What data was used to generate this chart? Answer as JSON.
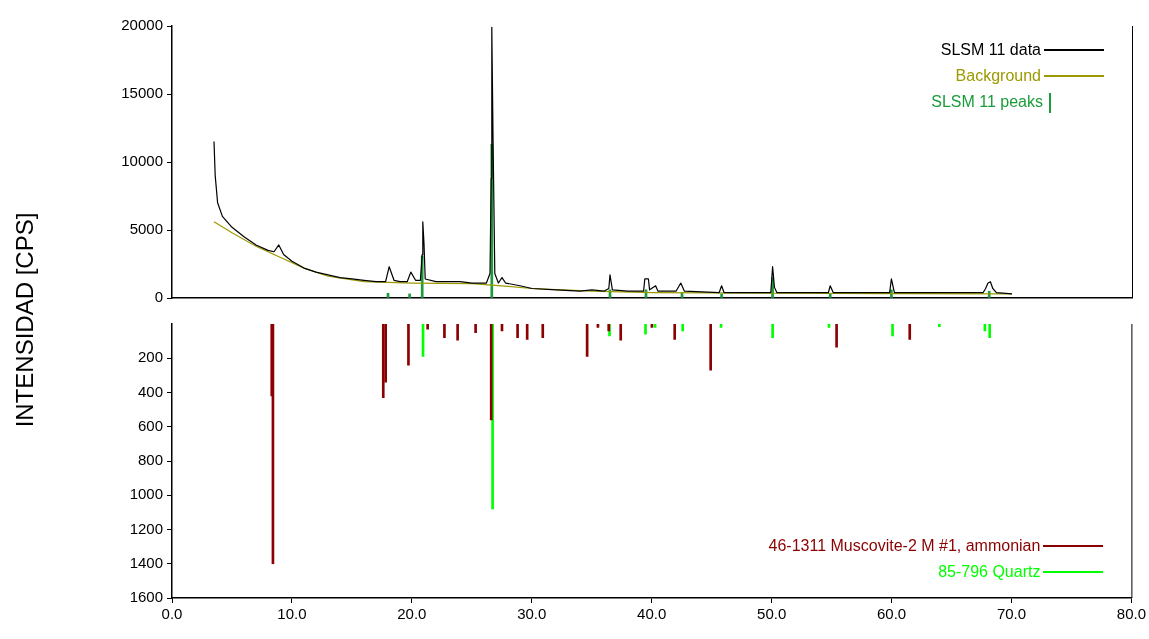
{
  "chart_data": [
    {
      "type": "line",
      "ylabel": "INTENSIDAD [CPS]",
      "xlim": [
        0,
        80
      ],
      "ylim": [
        0,
        20000
      ],
      "yticks": [
        0,
        5000,
        10000,
        15000,
        20000
      ],
      "tick_labels": "y",
      "grid": false,
      "legend": "top right",
      "marker": "none",
      "series": [
        {
          "name": "SLSM 11 data",
          "color": "#000000",
          "x": [
            3.5,
            3.6,
            3.8,
            4.2,
            5,
            6,
            7,
            8,
            8.5,
            8.9,
            9.3,
            10,
            11,
            12,
            13,
            14,
            15,
            16,
            17,
            17.8,
            18.1,
            18.5,
            19,
            19.6,
            19.9,
            20.3,
            20.7,
            20.85,
            20.9,
            21.0,
            21.1,
            22,
            24,
            25,
            26.2,
            26.5,
            26.6,
            26.65,
            26.75,
            26.9,
            27.2,
            27.5,
            27.8,
            29,
            30,
            32,
            34,
            35,
            36,
            36.4,
            36.5,
            36.7,
            38,
            39.3,
            39.4,
            39.7,
            39.8,
            40.3,
            40.5,
            42,
            42.4,
            42.7,
            45.6,
            45.8,
            46,
            49.9,
            50.05,
            50.2,
            50.4,
            54.7,
            54.85,
            55.1,
            59.8,
            59.95,
            60.2,
            64,
            67.6,
            67.8,
            68,
            68.2,
            68.4,
            68.7,
            70
          ],
          "values": [
            11500,
            9000,
            7000,
            6000,
            5200,
            4500,
            3900,
            3500,
            3400,
            3900,
            3200,
            2700,
            2200,
            1900,
            1700,
            1500,
            1400,
            1300,
            1200,
            1200,
            2300,
            1300,
            1200,
            1200,
            1900,
            1300,
            1300,
            3200,
            5600,
            4000,
            1400,
            1200,
            1200,
            1100,
            1100,
            1800,
            8800,
            19900,
            12000,
            1800,
            1100,
            1500,
            1100,
            900,
            700,
            600,
            500,
            600,
            500,
            700,
            1700,
            600,
            500,
            500,
            1400,
            1400,
            600,
            900,
            500,
            500,
            1100,
            500,
            400,
            900,
            400,
            400,
            2300,
            800,
            400,
            400,
            900,
            400,
            400,
            1400,
            400,
            400,
            400,
            700,
            1100,
            1200,
            700,
            400,
            300
          ]
        },
        {
          "name": "Background",
          "color": "#9c9a00",
          "x": [
            3.5,
            5,
            7,
            9,
            11,
            13,
            16,
            20,
            25,
            28,
            30,
            35,
            40,
            50,
            60,
            70
          ],
          "values": [
            5600,
            4800,
            3800,
            3000,
            2200,
            1600,
            1200,
            1100,
            1050,
            850,
            700,
            500,
            400,
            350,
            320,
            300
          ]
        },
        {
          "name": "SLSM 11 peaks",
          "type": "bar",
          "color": "#1a9c3a",
          "x": [
            18.0,
            19.8,
            20.85,
            26.65,
            36.5,
            39.5,
            42.5,
            45.8,
            50.05,
            54.85,
            59.95,
            68.1
          ],
          "values": [
            350,
            300,
            3100,
            11300,
            600,
            600,
            400,
            300,
            1500,
            300,
            600,
            500
          ]
        }
      ]
    },
    {
      "type": "bar",
      "xlim": [
        0,
        80
      ],
      "xticks": [
        {
          "value": 0,
          "label": "0.0"
        },
        {
          "value": 10,
          "label": "10.0"
        },
        {
          "value": 20,
          "label": "20.0"
        },
        {
          "value": 30,
          "label": "30.0"
        },
        {
          "value": 40,
          "label": "40.0"
        },
        {
          "value": 50,
          "label": "50.0"
        },
        {
          "value": 60,
          "label": "60.0"
        },
        {
          "value": 70,
          "label": "70.0"
        },
        {
          "value": 80,
          "label": "80.0"
        }
      ],
      "ylim": [
        1600,
        0
      ],
      "yticks": [
        200,
        400,
        600,
        800,
        1000,
        1200,
        1400,
        1600
      ],
      "grid": false,
      "legend": "bottom right",
      "series": [
        {
          "name": "46-1311 Muscovite-2  M #1, ammonian",
          "color": "#8b0000",
          "x": [
            8.4,
            8.5,
            17.7,
            17.9,
            19.8,
            21.4,
            22.8,
            23.9,
            25.4,
            26.7,
            27.6,
            28.9,
            29.7,
            31.0,
            34.7,
            35.6,
            36.5,
            37.5,
            40.1,
            42.0,
            45.0,
            55.5,
            61.6
          ],
          "values": [
            420,
            1400,
            430,
            340,
            240,
            30,
            80,
            95,
            50,
            560,
            40,
            80,
            90,
            80,
            190,
            20,
            40,
            95,
            20,
            90,
            270,
            135,
            90
          ]
        },
        {
          "name": "85-796 Quartz",
          "color": "#00ff00",
          "x": [
            20.85,
            26.65,
            36.4,
            39.4,
            40.2,
            42.5,
            45.7,
            50.0,
            54.7,
            60.0,
            63.9,
            67.7,
            68.1
          ],
          "values": [
            190,
            1080,
            70,
            60,
            20,
            40,
            20,
            80,
            20,
            70,
            15,
            40,
            80
          ]
        }
      ]
    }
  ]
}
